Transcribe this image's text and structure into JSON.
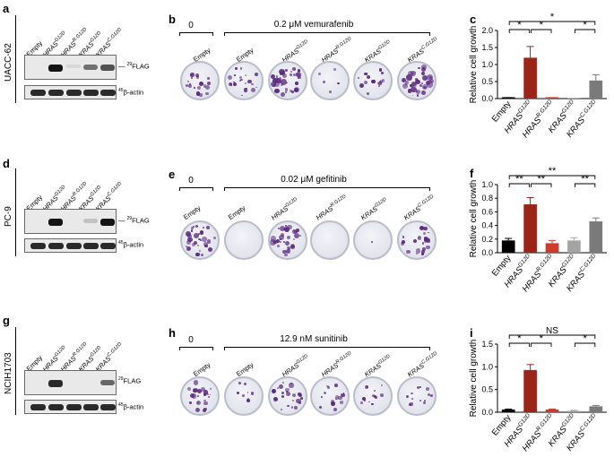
{
  "colors": {
    "hras_g12d": "#9b2418",
    "hras_r_g12d": "#d03a28",
    "kras_g12d": "#a3a3a3",
    "kras_c_g12d": "#7a7a7a",
    "empty": "#000000",
    "crystal_violet": "#5b2a82"
  },
  "blot_bands": {
    "flag_label_mw": "29",
    "flag_label_name": "FLAG",
    "actin_label_mw": "45",
    "actin_label_name": "β-actin"
  },
  "lanes": {
    "empty": "Empty",
    "hras_g12d": "HRAS",
    "hras_g12d_sup": "G12D",
    "hras_r_g12d": "HRAS",
    "hras_r_g12d_sup": "R.G12D",
    "kras_g12d": "KRAS",
    "kras_g12d_sup": "G12D",
    "kras_c_g12d": "KRAS",
    "kras_c_g12d_sup": "C.G12D"
  },
  "rows": [
    {
      "cell_line": "UACC-62",
      "labels": {
        "blot": "a",
        "plates": "b",
        "chart": "c"
      },
      "condition": {
        "zero": "0",
        "treatment": "0.2 μM vemurafenib"
      },
      "flag_intensity": [
        0,
        1.0,
        0.05,
        0.55,
        0.7
      ],
      "colony_density": [
        0.45,
        0.5,
        0.85,
        0.12,
        0.4,
        0.95
      ],
      "chart_data": {
        "type": "bar",
        "ylabel": "Relative cell growth",
        "ylim": [
          0,
          2.0
        ],
        "yticks": [
          "0.0",
          "0.5",
          "1.0",
          "1.5",
          "2.0"
        ],
        "tick_values": [
          0,
          0.5,
          1.0,
          1.5,
          2.0
        ],
        "values": [
          0.02,
          1.2,
          0.02,
          0.0,
          0.53
        ],
        "errors": [
          0.01,
          0.33,
          0.01,
          0.0,
          0.17
        ],
        "significance": [
          {
            "from": 0,
            "to": 1,
            "label": "*",
            "level": 1
          },
          {
            "from": 1,
            "to": 2,
            "label": "*",
            "level": 1
          },
          {
            "from": 3,
            "to": 4,
            "label": "*",
            "level": 1
          },
          {
            "from": 0,
            "to": 4,
            "label": "*",
            "level": 2
          }
        ]
      }
    },
    {
      "cell_line": "PC-9",
      "labels": {
        "blot": "d",
        "plates": "e",
        "chart": "f"
      },
      "condition": {
        "zero": "0",
        "treatment": "0.02 μM gefitinib"
      },
      "flag_intensity": [
        0,
        1.0,
        0.0,
        0.15,
        1.0
      ],
      "colony_density": [
        0.7,
        0.0,
        0.85,
        0.0,
        0.02,
        0.55
      ],
      "chart_data": {
        "type": "bar",
        "ylabel": "Relative cell growth",
        "ylim": [
          0,
          1.0
        ],
        "yticks": [
          "0.0",
          "0.2",
          "0.4",
          "0.6",
          "0.8",
          "1.0"
        ],
        "tick_values": [
          0,
          0.2,
          0.4,
          0.6,
          0.8,
          1.0
        ],
        "values": [
          0.18,
          0.71,
          0.14,
          0.18,
          0.46
        ],
        "errors": [
          0.03,
          0.1,
          0.04,
          0.04,
          0.05
        ],
        "significance": [
          {
            "from": 0,
            "to": 1,
            "label": "**",
            "level": 1
          },
          {
            "from": 1,
            "to": 2,
            "label": "**",
            "level": 1
          },
          {
            "from": 3,
            "to": 4,
            "label": "**",
            "level": 1
          },
          {
            "from": 0,
            "to": 4,
            "label": "**",
            "level": 2
          }
        ]
      }
    },
    {
      "cell_line": "NCIH1703",
      "labels": {
        "blot": "g",
        "plates": "h",
        "chart": "i"
      },
      "condition": {
        "zero": "0",
        "treatment": "12.9 nM sunitinib"
      },
      "flag_intensity": [
        0,
        0.9,
        0.0,
        0.0,
        0.6
      ],
      "colony_density": [
        0.55,
        0.2,
        0.6,
        0.35,
        0.3,
        0.3
      ],
      "chart_data": {
        "type": "bar",
        "ylabel": "Relative cell growth",
        "ylim": [
          0,
          1.5
        ],
        "yticks": [
          "0.0",
          "0.5",
          "1.0",
          "1.5"
        ],
        "tick_values": [
          0,
          0.5,
          1.0,
          1.5
        ],
        "values": [
          0.06,
          0.93,
          0.06,
          0.03,
          0.13
        ],
        "errors": [
          0.01,
          0.12,
          0.01,
          0.01,
          0.02
        ],
        "significance": [
          {
            "from": 0,
            "to": 1,
            "label": "*",
            "level": 1
          },
          {
            "from": 1,
            "to": 2,
            "label": "*",
            "level": 1
          },
          {
            "from": 3,
            "to": 4,
            "label": "*",
            "level": 1
          },
          {
            "from": 0,
            "to": 4,
            "label": "NS",
            "level": 2
          }
        ]
      }
    }
  ]
}
